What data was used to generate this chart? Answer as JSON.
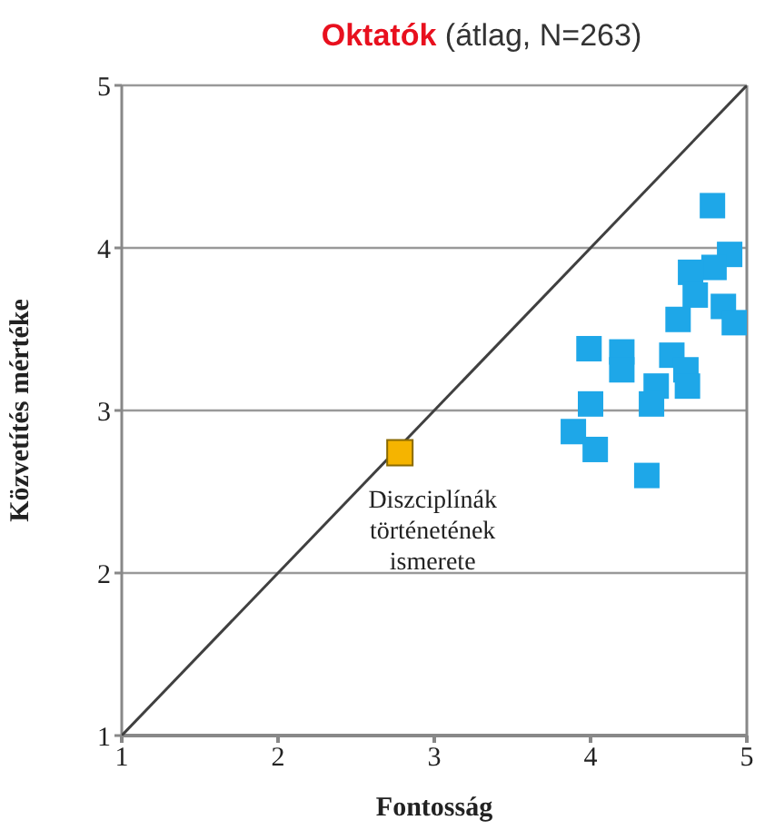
{
  "chart_data": {
    "type": "scatter",
    "title": "Oktatók",
    "subtitle": "(átlag, N=263)",
    "xlabel": "Fontosság",
    "ylabel": "Közvetítés mértéke",
    "xlim": [
      1,
      5
    ],
    "xticks": [
      1,
      2,
      3,
      4,
      5
    ],
    "ylim": [
      1,
      5
    ],
    "yticks": [
      1,
      2,
      3,
      4,
      5
    ],
    "grid": "y",
    "marker": "square",
    "series": [
      {
        "type": "line",
        "marker": "none",
        "color": "#404040",
        "x": [
          1,
          5
        ],
        "values": [
          1,
          5
        ]
      },
      {
        "color": "#1ea7e8",
        "x": [
          4.78,
          4.89,
          4.79,
          4.64,
          4.67,
          4.85,
          4.92,
          4.56,
          3.99,
          4.2,
          4.2,
          4.52,
          4.61,
          4.62,
          4.42,
          4.39,
          4.0,
          3.89,
          4.03,
          4.36
        ],
        "values": [
          4.26,
          3.96,
          3.88,
          3.85,
          3.71,
          3.64,
          3.54,
          3.56,
          3.38,
          3.36,
          3.25,
          3.34,
          3.25,
          3.15,
          3.15,
          3.04,
          3.04,
          2.87,
          2.76,
          2.6
        ]
      },
      {
        "color": "#f5b400",
        "x": [
          2.78
        ],
        "values": [
          2.74
        ]
      }
    ],
    "annotations": [
      {
        "text": "Diszciplínák történetének ismerete",
        "x": 2.78,
        "y": 2.74
      }
    ]
  }
}
